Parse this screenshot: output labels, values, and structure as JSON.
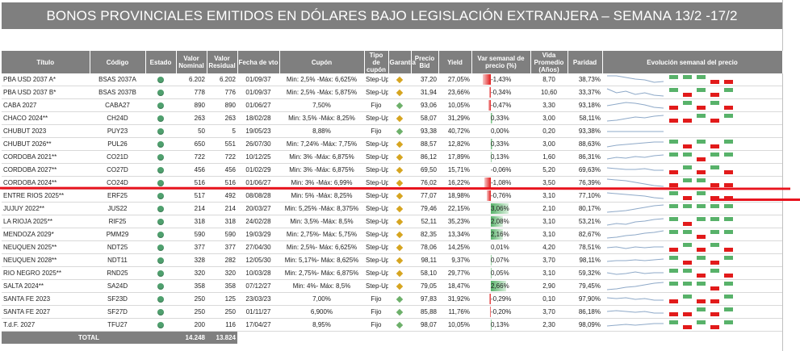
{
  "title": "BONOS PROVINCIALES EMITIDOS EN DÓLARES BAJO LEGISLACIÓN EXTRANJERA – SEMANA 13/2 -17/2",
  "colors": {
    "header_bg": "#7f7f7f",
    "positive": "#58b26a",
    "negative": "#e21a1a",
    "status_dot": "#4fa06e",
    "diamond_stepup": "#d6a520",
    "diamond_fijo": "#6db06a",
    "annotation_line": "#e8141e"
  },
  "icons": {
    "status": "green-circle-icon",
    "coupon_type": "diamond-icon"
  },
  "headers": [
    "Título",
    "Código",
    "Estado",
    "Valor Nominal",
    "Valor Residual",
    "Fecha de vto",
    "Cupón",
    "Tipo de cupón",
    "Garantía",
    "Precio Bid",
    "Yield",
    "Var semanal de precio (%)",
    "Vida Promedio (Años)",
    "Paridad",
    "Evolución semanal del precio"
  ],
  "rows": [
    {
      "titulo": "PBA USD 2037 A*",
      "codigo": "BSAS 2037A",
      "nominal": "6.202",
      "residual": "6.202",
      "vto": "01/09/37",
      "cupon": "Min: 2,5% -Máx: 6,625%",
      "tipo": "Step-Up",
      "precio": "37,20",
      "yield": "27,05%",
      "var": "-1,43%",
      "var_value": -1.43,
      "vida": "8,70",
      "paridad": "38,73%",
      "trend": [
        2,
        2,
        1.8,
        1.6,
        1.5,
        1.2,
        1.3
      ],
      "weekly": [
        1,
        1,
        1,
        -1,
        -1
      ]
    },
    {
      "titulo": "PBA USD 2037 B*",
      "codigo": "BSAS 2037B",
      "nominal": "778",
      "residual": "776",
      "vto": "01/09/37",
      "cupon": "Min: 2,5% -Máx: 5,875%",
      "tipo": "Step-Up",
      "precio": "31,94",
      "yield": "23,66%",
      "var": "-0,34%",
      "var_value": -0.34,
      "vida": "10,60",
      "paridad": "33,37%",
      "trend": [
        2,
        1.5,
        1.7,
        1.3,
        1.5,
        1.2,
        1.1
      ],
      "weekly": [
        1,
        -1,
        1,
        -1,
        1
      ]
    },
    {
      "titulo": "CABA 2027",
      "codigo": "CABA27",
      "nominal": "890",
      "residual": "890",
      "vto": "01/06/27",
      "cupon": "7,50%",
      "tipo": "Fijo",
      "precio": "93,06",
      "yield": "10,05%",
      "var": "-0,47%",
      "var_value": -0.47,
      "vida": "3,30",
      "paridad": "93,18%",
      "trend": [
        1.5,
        1.7,
        1.9,
        1.8,
        1.6,
        1.3,
        1.2
      ],
      "weekly": [
        -1,
        1,
        -1,
        1,
        -1
      ]
    },
    {
      "titulo": "CHACO 2024**",
      "codigo": "CH24D",
      "nominal": "263",
      "residual": "263",
      "vto": "18/02/28",
      "cupon": "Min: 3,5% -Máx: 8,25%",
      "tipo": "Step-Up",
      "precio": "58,07",
      "yield": "31,29%",
      "var": "0,33%",
      "var_value": 0.33,
      "vida": "3,00",
      "paridad": "58,11%",
      "trend": [
        1.2,
        1.3,
        1.5,
        1.7,
        1.6,
        1.8,
        1.9
      ],
      "weekly": [
        -1,
        -1,
        1,
        -1,
        1
      ]
    },
    {
      "titulo": "CHUBUT 2023",
      "codigo": "PUY23",
      "nominal": "50",
      "residual": "5",
      "vto": "19/05/23",
      "cupon": "8,88%",
      "tipo": "Fijo",
      "precio": "93,38",
      "yield": "40,72%",
      "var": "0,00%",
      "var_value": 0,
      "vida": "0,20",
      "paridad": "93,38%",
      "trend": [
        1.5,
        1.5,
        1.5,
        1.5,
        1.5,
        1.5,
        1.5
      ],
      "weekly": [
        0,
        0,
        0,
        0,
        0
      ]
    },
    {
      "titulo": "CHUBUT 2026**",
      "codigo": "PUL26",
      "nominal": "650",
      "residual": "551",
      "vto": "26/07/30",
      "cupon": "Min: 7,24% -Máx: 7,75%",
      "tipo": "Step-Up",
      "precio": "88,57",
      "yield": "12,82%",
      "var": "0,33%",
      "var_value": 0.33,
      "vida": "3,00",
      "paridad": "88,63%",
      "trend": [
        1.2,
        1.4,
        1.5,
        1.6,
        1.7,
        1.8,
        1.8
      ],
      "weekly": [
        1,
        -1,
        1,
        -1,
        1
      ]
    },
    {
      "titulo": "CORDOBA 2021**",
      "codigo": "CO21D",
      "nominal": "722",
      "residual": "722",
      "vto": "10/12/25",
      "cupon": "Min: 3% -Máx: 6,875%",
      "tipo": "Step-Up",
      "precio": "86,12",
      "yield": "17,89%",
      "var": "0,13%",
      "var_value": 0.13,
      "vida": "1,60",
      "paridad": "86,31%",
      "trend": [
        1.3,
        1.5,
        1.4,
        1.6,
        1.5,
        1.7,
        1.8
      ],
      "weekly": [
        1,
        1,
        -1,
        1,
        1
      ]
    },
    {
      "titulo": "CORDOBA 2027**",
      "codigo": "CO27D",
      "nominal": "456",
      "residual": "456",
      "vto": "01/02/29",
      "cupon": "Min: 3% -Máx: 6,875%",
      "tipo": "Step-Up",
      "precio": "69,50",
      "yield": "15,71%",
      "var": "-0,06%",
      "var_value": -0.06,
      "vida": "5,20",
      "paridad": "69,63%",
      "trend": [
        1.8,
        1.7,
        1.6,
        1.6,
        1.7,
        1.5,
        1.5
      ],
      "weekly": [
        -1,
        1,
        -1,
        1,
        -1
      ]
    },
    {
      "titulo": "CORDOBA 2024**",
      "codigo": "CO24D",
      "nominal": "516",
      "residual": "516",
      "vto": "01/06/27",
      "cupon": "Min: 3% -Máx: 6,99%",
      "tipo": "Step-Up",
      "precio": "76,02",
      "yield": "16,22%",
      "var": "-1,08%",
      "var_value": -1.08,
      "vida": "3,50",
      "paridad": "76,39%",
      "trend": [
        2,
        1.9,
        1.8,
        1.6,
        1.4,
        1.2,
        1.1
      ],
      "weekly": [
        -1,
        1,
        1,
        -1,
        -1
      ]
    },
    {
      "titulo": "ENTRE RIOS 2025**",
      "codigo": "ERF25",
      "nominal": "517",
      "residual": "492",
      "vto": "08/08/28",
      "cupon": "Min: 5% -Máx: 8,25%",
      "tipo": "Step-Up",
      "precio": "77,07",
      "yield": "18,98%",
      "var": "-0,76%",
      "var_value": -0.76,
      "vida": "3,10",
      "paridad": "77,10%",
      "trend": [
        1.9,
        1.8,
        1.7,
        1.6,
        1.5,
        1.3,
        1.2
      ],
      "weekly": [
        1,
        -1,
        1,
        -1,
        -1
      ]
    },
    {
      "titulo": "JUJUY 2022**",
      "codigo": "JUS22",
      "nominal": "214",
      "residual": "214",
      "vto": "20/03/27",
      "cupon": "Min: 5,25% -Máx: 8,375%",
      "tipo": "Step-Up",
      "precio": "79,46",
      "yield": "22,15%",
      "var": "3,06%",
      "var_value": 3.06,
      "vida": "2,10",
      "paridad": "80,17%",
      "trend": [
        1.1,
        1.2,
        1.3,
        1.5,
        1.7,
        1.9,
        2
      ],
      "weekly": [
        1,
        1,
        1,
        1,
        1
      ]
    },
    {
      "titulo": "LA RIOJA 2025**",
      "codigo": "RIF25",
      "nominal": "318",
      "residual": "318",
      "vto": "24/02/28",
      "cupon": "Min: 3,5% -Máx: 8,5%",
      "tipo": "Step-Up",
      "precio": "52,11",
      "yield": "35,23%",
      "var": "2,08%",
      "var_value": 2.08,
      "vida": "3,10",
      "paridad": "53,21%",
      "trend": [
        1.1,
        1.3,
        1.2,
        1.5,
        1.6,
        1.8,
        1.9
      ],
      "weekly": [
        1,
        -1,
        1,
        1,
        1
      ]
    },
    {
      "titulo": "MENDOZA 2029*",
      "codigo": "PMM29",
      "nominal": "590",
      "residual": "590",
      "vto": "19/03/29",
      "cupon": "Min: 2,75%- Máx: 5,75%",
      "tipo": "Step-Up",
      "precio": "82,35",
      "yield": "13,34%",
      "var": "2,16%",
      "var_value": 2.16,
      "vida": "3,10",
      "paridad": "82,67%",
      "trend": [
        1.1,
        1.2,
        1.4,
        1.5,
        1.7,
        1.8,
        2
      ],
      "weekly": [
        1,
        1,
        -1,
        1,
        1
      ]
    },
    {
      "titulo": "NEUQUEN 2025**",
      "codigo": "NDT25",
      "nominal": "377",
      "residual": "377",
      "vto": "27/04/30",
      "cupon": "Min: 2,5%- Máx: 6,625%",
      "tipo": "Step-Up",
      "precio": "78,06",
      "yield": "14,25%",
      "var": "0,01%",
      "var_value": 0.01,
      "vida": "4,20",
      "paridad": "78,51%",
      "trend": [
        1.5,
        1.6,
        1.4,
        1.6,
        1.5,
        1.6,
        1.6
      ],
      "weekly": [
        -1,
        1,
        -1,
        1,
        -1
      ]
    },
    {
      "titulo": "NEUQUEN 2028**",
      "codigo": "NDT11",
      "nominal": "328",
      "residual": "282",
      "vto": "12/05/30",
      "cupon": "Min: 5,17%- Máx: 8,625%",
      "tipo": "Step-Up",
      "precio": "98,11",
      "yield": "9,37%",
      "var": "0,07%",
      "var_value": 0.07,
      "vida": "3,70",
      "paridad": "98,11%",
      "trend": [
        1.4,
        1.5,
        1.5,
        1.6,
        1.5,
        1.6,
        1.7
      ],
      "weekly": [
        1,
        -1,
        1,
        -1,
        1
      ]
    },
    {
      "titulo": "RIO NEGRO 2025**",
      "codigo": "RND25",
      "nominal": "320",
      "residual": "320",
      "vto": "10/03/28",
      "cupon": "Min: 2,75%- Máx: 6,875%",
      "tipo": "Step-Up",
      "precio": "58,10",
      "yield": "29,77%",
      "var": "0,05%",
      "var_value": 0.05,
      "vida": "3,10",
      "paridad": "59,32%",
      "trend": [
        1.6,
        1.4,
        1.5,
        1.7,
        1.5,
        1.6,
        1.6
      ],
      "weekly": [
        1,
        1,
        -1,
        1,
        -1
      ]
    },
    {
      "titulo": "SALTA 2024**",
      "codigo": "SA24D",
      "nominal": "358",
      "residual": "358",
      "vto": "07/12/27",
      "cupon": "Min: 4%- Máx: 8,5%",
      "tipo": "Step-Up",
      "precio": "79,05",
      "yield": "18,47%",
      "var": "2,66%",
      "var_value": 2.66,
      "vida": "2,90",
      "paridad": "79,45%",
      "trend": [
        1.1,
        1.2,
        1.4,
        1.5,
        1.7,
        1.9,
        2
      ],
      "weekly": [
        1,
        1,
        1,
        -1,
        1
      ]
    },
    {
      "titulo": "SANTA FE 2023",
      "codigo": "SF23D",
      "nominal": "250",
      "residual": "125",
      "vto": "23/03/23",
      "cupon": "7,00%",
      "tipo": "Fijo",
      "precio": "97,83",
      "yield": "31,92%",
      "var": "-0,29%",
      "var_value": -0.29,
      "vida": "0,10",
      "paridad": "97,90%",
      "trend": [
        1.7,
        1.6,
        1.7,
        1.5,
        1.6,
        1.4,
        1.4
      ],
      "weekly": [
        -1,
        1,
        -1,
        -1,
        1
      ]
    },
    {
      "titulo": "SANTA FE 2027",
      "codigo": "SF27D",
      "nominal": "250",
      "residual": "250",
      "vto": "01/11/27",
      "cupon": "6,900%",
      "tipo": "Fijo",
      "precio": "85,88",
      "yield": "11,76%",
      "var": "-0,20%",
      "var_value": -0.2,
      "vida": "3,70",
      "paridad": "86,18%",
      "trend": [
        1.6,
        1.7,
        1.6,
        1.5,
        1.6,
        1.4,
        1.4
      ],
      "weekly": [
        -1,
        -1,
        1,
        -1,
        1
      ]
    },
    {
      "titulo": "T.d.F. 2027",
      "codigo": "TFU27",
      "nominal": "200",
      "residual": "116",
      "vto": "17/04/27",
      "cupon": "8,95%",
      "tipo": "Fijo",
      "precio": "98,07",
      "yield": "10,05%",
      "var": "0,13%",
      "var_value": 0.13,
      "vida": "2,30",
      "paridad": "98,09%",
      "trend": [
        1.4,
        1.5,
        1.6,
        1.5,
        1.6,
        1.7,
        1.7
      ],
      "weekly": [
        1,
        -1,
        1,
        -1,
        1
      ]
    }
  ],
  "total": {
    "label": "TOTAL",
    "nominal": "14.248",
    "residual": "13.824"
  }
}
